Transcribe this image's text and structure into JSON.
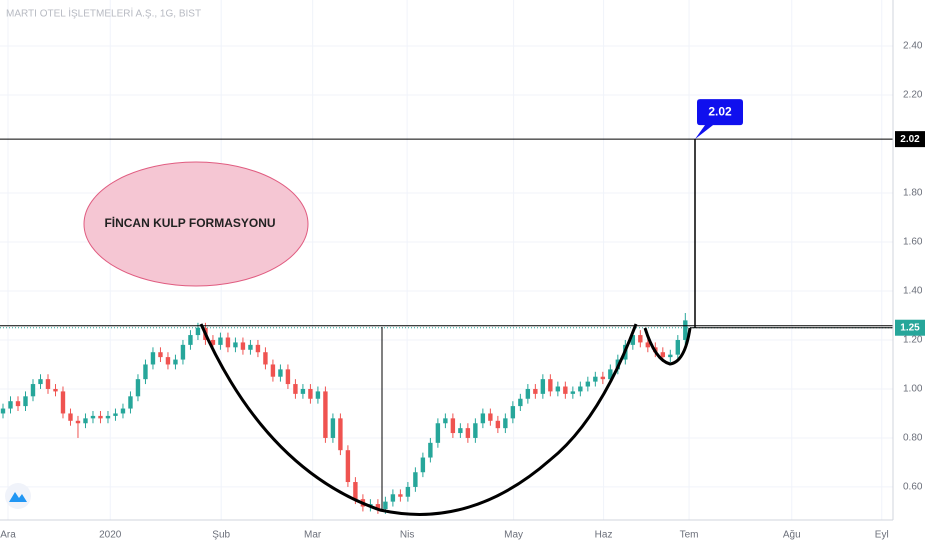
{
  "chart_data": {
    "type": "candlestick",
    "title": "MARTI OTEL İŞLETMELERİ A.Ş., 1G, BIST",
    "annotations": [
      "FİNCAN KULP FORMASYONU"
    ],
    "open": [
      0.9,
      0.92,
      0.95,
      0.93,
      0.97,
      1.02,
      1.04,
      1.0,
      0.99,
      0.9,
      0.87,
      0.86,
      0.88,
      0.89,
      0.88,
      0.89,
      0.9,
      0.92,
      0.97,
      1.04,
      1.1,
      1.15,
      1.13,
      1.1,
      1.12,
      1.18,
      1.22,
      1.25,
      1.2,
      1.18,
      1.21,
      1.17,
      1.19,
      1.16,
      1.18,
      1.15,
      1.1,
      1.05,
      1.08,
      1.02,
      0.98,
      1.0,
      0.96,
      0.99,
      0.8,
      0.88,
      0.75,
      0.62,
      0.55,
      0.52,
      0.53,
      0.51,
      0.54,
      0.57,
      0.56,
      0.6,
      0.66,
      0.72,
      0.78,
      0.86,
      0.88,
      0.82,
      0.84,
      0.8,
      0.86,
      0.9,
      0.87,
      0.84,
      0.88,
      0.93,
      0.96,
      1.0,
      0.98,
      1.04,
      0.99,
      1.01,
      0.98,
      0.99,
      1.01,
      1.03,
      1.05,
      1.04,
      1.08,
      1.12,
      1.18,
      1.22,
      1.19,
      1.17,
      1.15,
      1.13,
      1.14,
      1.2
    ],
    "high": [
      0.94,
      0.97,
      0.97,
      0.99,
      1.04,
      1.06,
      1.06,
      1.02,
      1.01,
      0.92,
      0.89,
      0.9,
      0.91,
      0.91,
      0.91,
      0.92,
      0.94,
      0.99,
      1.06,
      1.12,
      1.17,
      1.17,
      1.15,
      1.14,
      1.2,
      1.24,
      1.27,
      1.27,
      1.22,
      1.23,
      1.23,
      1.21,
      1.21,
      1.2,
      1.2,
      1.17,
      1.12,
      1.1,
      1.1,
      1.04,
      1.02,
      1.02,
      1.01,
      1.01,
      0.9,
      0.9,
      0.77,
      0.64,
      0.57,
      0.55,
      0.55,
      0.56,
      0.59,
      0.59,
      0.62,
      0.68,
      0.74,
      0.8,
      0.88,
      0.9,
      0.9,
      0.86,
      0.86,
      0.88,
      0.92,
      0.92,
      0.89,
      0.9,
      0.95,
      0.98,
      1.02,
      1.02,
      1.06,
      1.06,
      1.03,
      1.03,
      1.01,
      1.03,
      1.05,
      1.07,
      1.07,
      1.1,
      1.14,
      1.2,
      1.24,
      1.24,
      1.21,
      1.19,
      1.17,
      1.16,
      1.22,
      1.31
    ],
    "low": [
      0.88,
      0.9,
      0.91,
      0.91,
      0.95,
      1.0,
      0.98,
      0.97,
      0.88,
      0.85,
      0.8,
      0.84,
      0.86,
      0.86,
      0.86,
      0.87,
      0.88,
      0.9,
      0.95,
      1.02,
      1.08,
      1.11,
      1.08,
      1.08,
      1.1,
      1.16,
      1.2,
      1.18,
      1.16,
      1.16,
      1.15,
      1.15,
      1.14,
      1.14,
      1.13,
      1.08,
      1.03,
      1.03,
      1.0,
      0.96,
      0.96,
      0.94,
      0.94,
      0.78,
      0.78,
      0.73,
      0.6,
      0.53,
      0.5,
      0.5,
      0.49,
      0.49,
      0.52,
      0.54,
      0.54,
      0.58,
      0.64,
      0.7,
      0.76,
      0.84,
      0.8,
      0.8,
      0.78,
      0.78,
      0.84,
      0.85,
      0.82,
      0.82,
      0.86,
      0.91,
      0.94,
      0.96,
      0.96,
      0.97,
      0.97,
      0.96,
      0.96,
      0.97,
      0.99,
      1.01,
      1.02,
      1.02,
      1.06,
      1.1,
      1.16,
      1.17,
      1.15,
      1.13,
      1.11,
      1.11,
      1.12,
      1.18
    ],
    "close": [
      0.92,
      0.95,
      0.93,
      0.97,
      1.02,
      1.04,
      1.0,
      0.99,
      0.9,
      0.87,
      0.86,
      0.88,
      0.89,
      0.88,
      0.89,
      0.9,
      0.92,
      0.97,
      1.04,
      1.1,
      1.15,
      1.13,
      1.1,
      1.12,
      1.18,
      1.22,
      1.25,
      1.2,
      1.18,
      1.21,
      1.17,
      1.19,
      1.16,
      1.18,
      1.15,
      1.1,
      1.05,
      1.08,
      1.02,
      0.98,
      1.0,
      0.96,
      0.99,
      0.8,
      0.88,
      0.75,
      0.62,
      0.55,
      0.52,
      0.53,
      0.51,
      0.54,
      0.57,
      0.56,
      0.6,
      0.66,
      0.72,
      0.78,
      0.86,
      0.88,
      0.82,
      0.84,
      0.8,
      0.86,
      0.9,
      0.87,
      0.84,
      0.88,
      0.93,
      0.96,
      1.0,
      0.98,
      1.04,
      0.99,
      1.01,
      0.98,
      0.99,
      1.01,
      1.03,
      1.05,
      1.04,
      1.08,
      1.12,
      1.18,
      1.22,
      1.19,
      1.17,
      1.15,
      1.13,
      1.14,
      1.2,
      1.28
    ],
    "up_color": "#26a69a",
    "down_color": "#ef5350",
    "levels": [
      {
        "value": 2.02,
        "label": "2.02"
      },
      {
        "value": 1.25,
        "label": "1.25"
      }
    ],
    "xlim": [
      -0.4,
      118.7
    ],
    "xticks": [
      {
        "value": 0.67,
        "label": "Ara"
      },
      {
        "value": 14.3,
        "label": "2020"
      },
      {
        "value": 29.1,
        "label": "Şub"
      },
      {
        "value": 41.3,
        "label": "Mar"
      },
      {
        "value": 53.9,
        "label": "Nis"
      },
      {
        "value": 68.1,
        "label": "May"
      },
      {
        "value": 80.1,
        "label": "Haz"
      },
      {
        "value": 91.5,
        "label": "Tem"
      },
      {
        "value": 105.2,
        "label": "Ağu"
      },
      {
        "value": 117.2,
        "label": "Eyl"
      }
    ],
    "ylim": [
      0.465,
      2.588
    ],
    "yticks": [
      {
        "value": 0.6,
        "label": "0.60"
      },
      {
        "value": 0.8,
        "label": "0.80"
      },
      {
        "value": 1.0,
        "label": "1.00"
      },
      {
        "value": 1.2,
        "label": "1.20"
      },
      {
        "value": 1.4,
        "label": "1.40"
      },
      {
        "value": 1.6,
        "label": "1.60"
      },
      {
        "value": 1.8,
        "label": "1.80"
      },
      {
        "value": 2.2,
        "label": "2.20"
      },
      {
        "value": 2.4,
        "label": "2.40"
      }
    ],
    "grid": true
  }
}
